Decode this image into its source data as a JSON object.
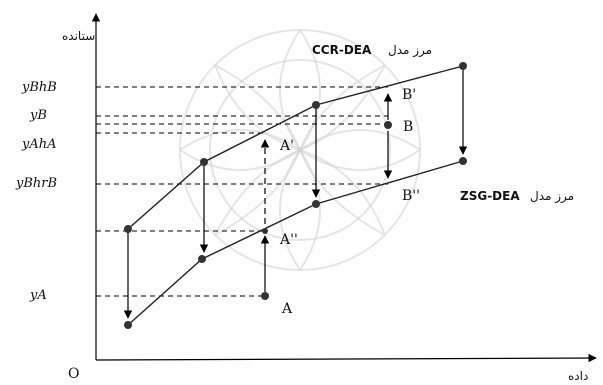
{
  "axes": {
    "y_title": "ستانده",
    "x_title": "داده",
    "origin": "O"
  },
  "y_labels": {
    "ybhb": "yBhB",
    "yb": "yB",
    "yaha": "yAhA",
    "ybhrb": "yBhrB",
    "ya": "yA"
  },
  "points": {
    "A": "A",
    "A_prime": "A'",
    "A_dprime": "A''",
    "B": "B",
    "B_prime": "B'",
    "B_dprime": "B''"
  },
  "frontiers": {
    "ccr_prefix": "مرز مدل",
    "ccr_name": "CCR-DEA",
    "zsg_prefix": "مرز مدل",
    "zsg_name": "ZSG-DEA"
  }
}
